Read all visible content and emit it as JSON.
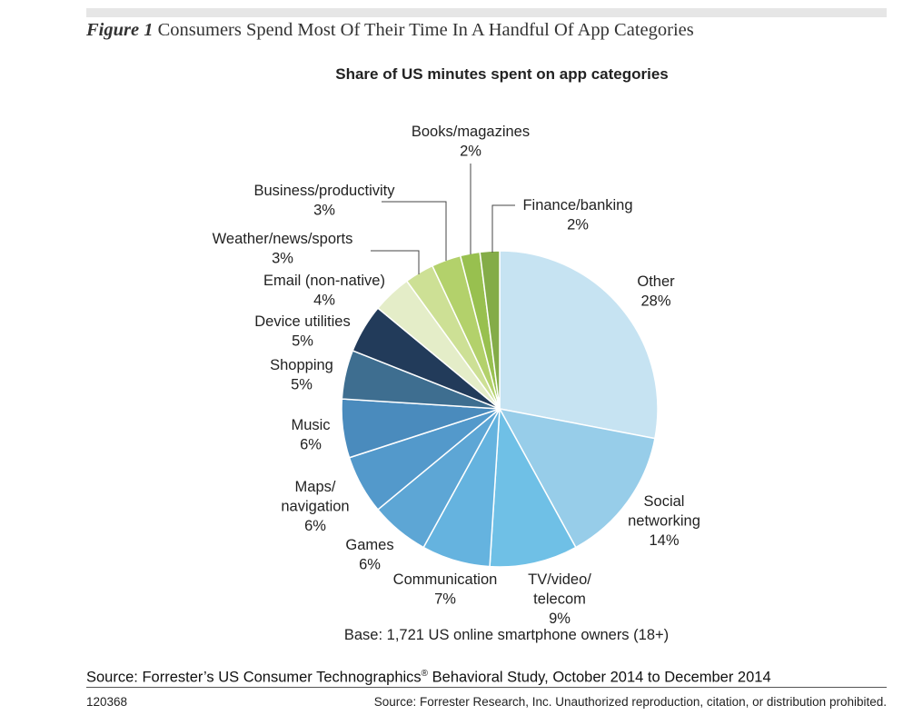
{
  "figure": {
    "number": "Figure 1",
    "caption": "Consumers Spend Most Of Their Time In A Handful Of App Categories"
  },
  "chart_data": {
    "type": "pie",
    "title": "Share of US minutes spent on app categories",
    "unit": "%",
    "slices": [
      {
        "label": [
          "Other"
        ],
        "value": 28,
        "display": "28%",
        "color": "#c6e3f2"
      },
      {
        "label": [
          "Social",
          "networking"
        ],
        "value": 14,
        "display": "14%",
        "color": "#97cde9"
      },
      {
        "label": [
          "TV/video/",
          "telecom"
        ],
        "value": 9,
        "display": "9%",
        "color": "#6fc0e6"
      },
      {
        "label": [
          "Communication"
        ],
        "value": 7,
        "display": "7%",
        "color": "#65b3df"
      },
      {
        "label": [
          "Games"
        ],
        "value": 6,
        "display": "6%",
        "color": "#5da6d5"
      },
      {
        "label": [
          "Maps/",
          "navigation"
        ],
        "value": 6,
        "display": "6%",
        "color": "#5399cb"
      },
      {
        "label": [
          "Music"
        ],
        "value": 6,
        "display": "6%",
        "color": "#4a8bbd"
      },
      {
        "label": [
          "Shopping"
        ],
        "value": 5,
        "display": "5%",
        "color": "#3e6e90"
      },
      {
        "label": [
          "Device utilities"
        ],
        "value": 5,
        "display": "5%",
        "color": "#223b5a"
      },
      {
        "label": [
          "Email (non-native)"
        ],
        "value": 4,
        "display": "4%",
        "color": "#e4edc8"
      },
      {
        "label": [
          "Weather/news/sports"
        ],
        "value": 3,
        "display": "3%",
        "color": "#cde095"
      },
      {
        "label": [
          "Business/productivity"
        ],
        "value": 3,
        "display": "3%",
        "color": "#b3d16b"
      },
      {
        "label": [
          "Books/magazines"
        ],
        "value": 2,
        "display": "2%",
        "color": "#98c04f"
      },
      {
        "label": [
          "Finance/banking"
        ],
        "value": 2,
        "display": "2%",
        "color": "#84ac48"
      }
    ]
  },
  "base_note": "Base: 1,721 US online smartphone owners (18+)",
  "source": {
    "prefix": "Source: Forrester’s US Consumer Technographics",
    "mark": "®",
    "suffix": " Behavioral Study, October 2014 to December 2014"
  },
  "footer": {
    "doc_id": "120368",
    "copyright": "Source: Forrester Research, Inc. Unauthorized reproduction, citation, or distribution prohibited."
  }
}
